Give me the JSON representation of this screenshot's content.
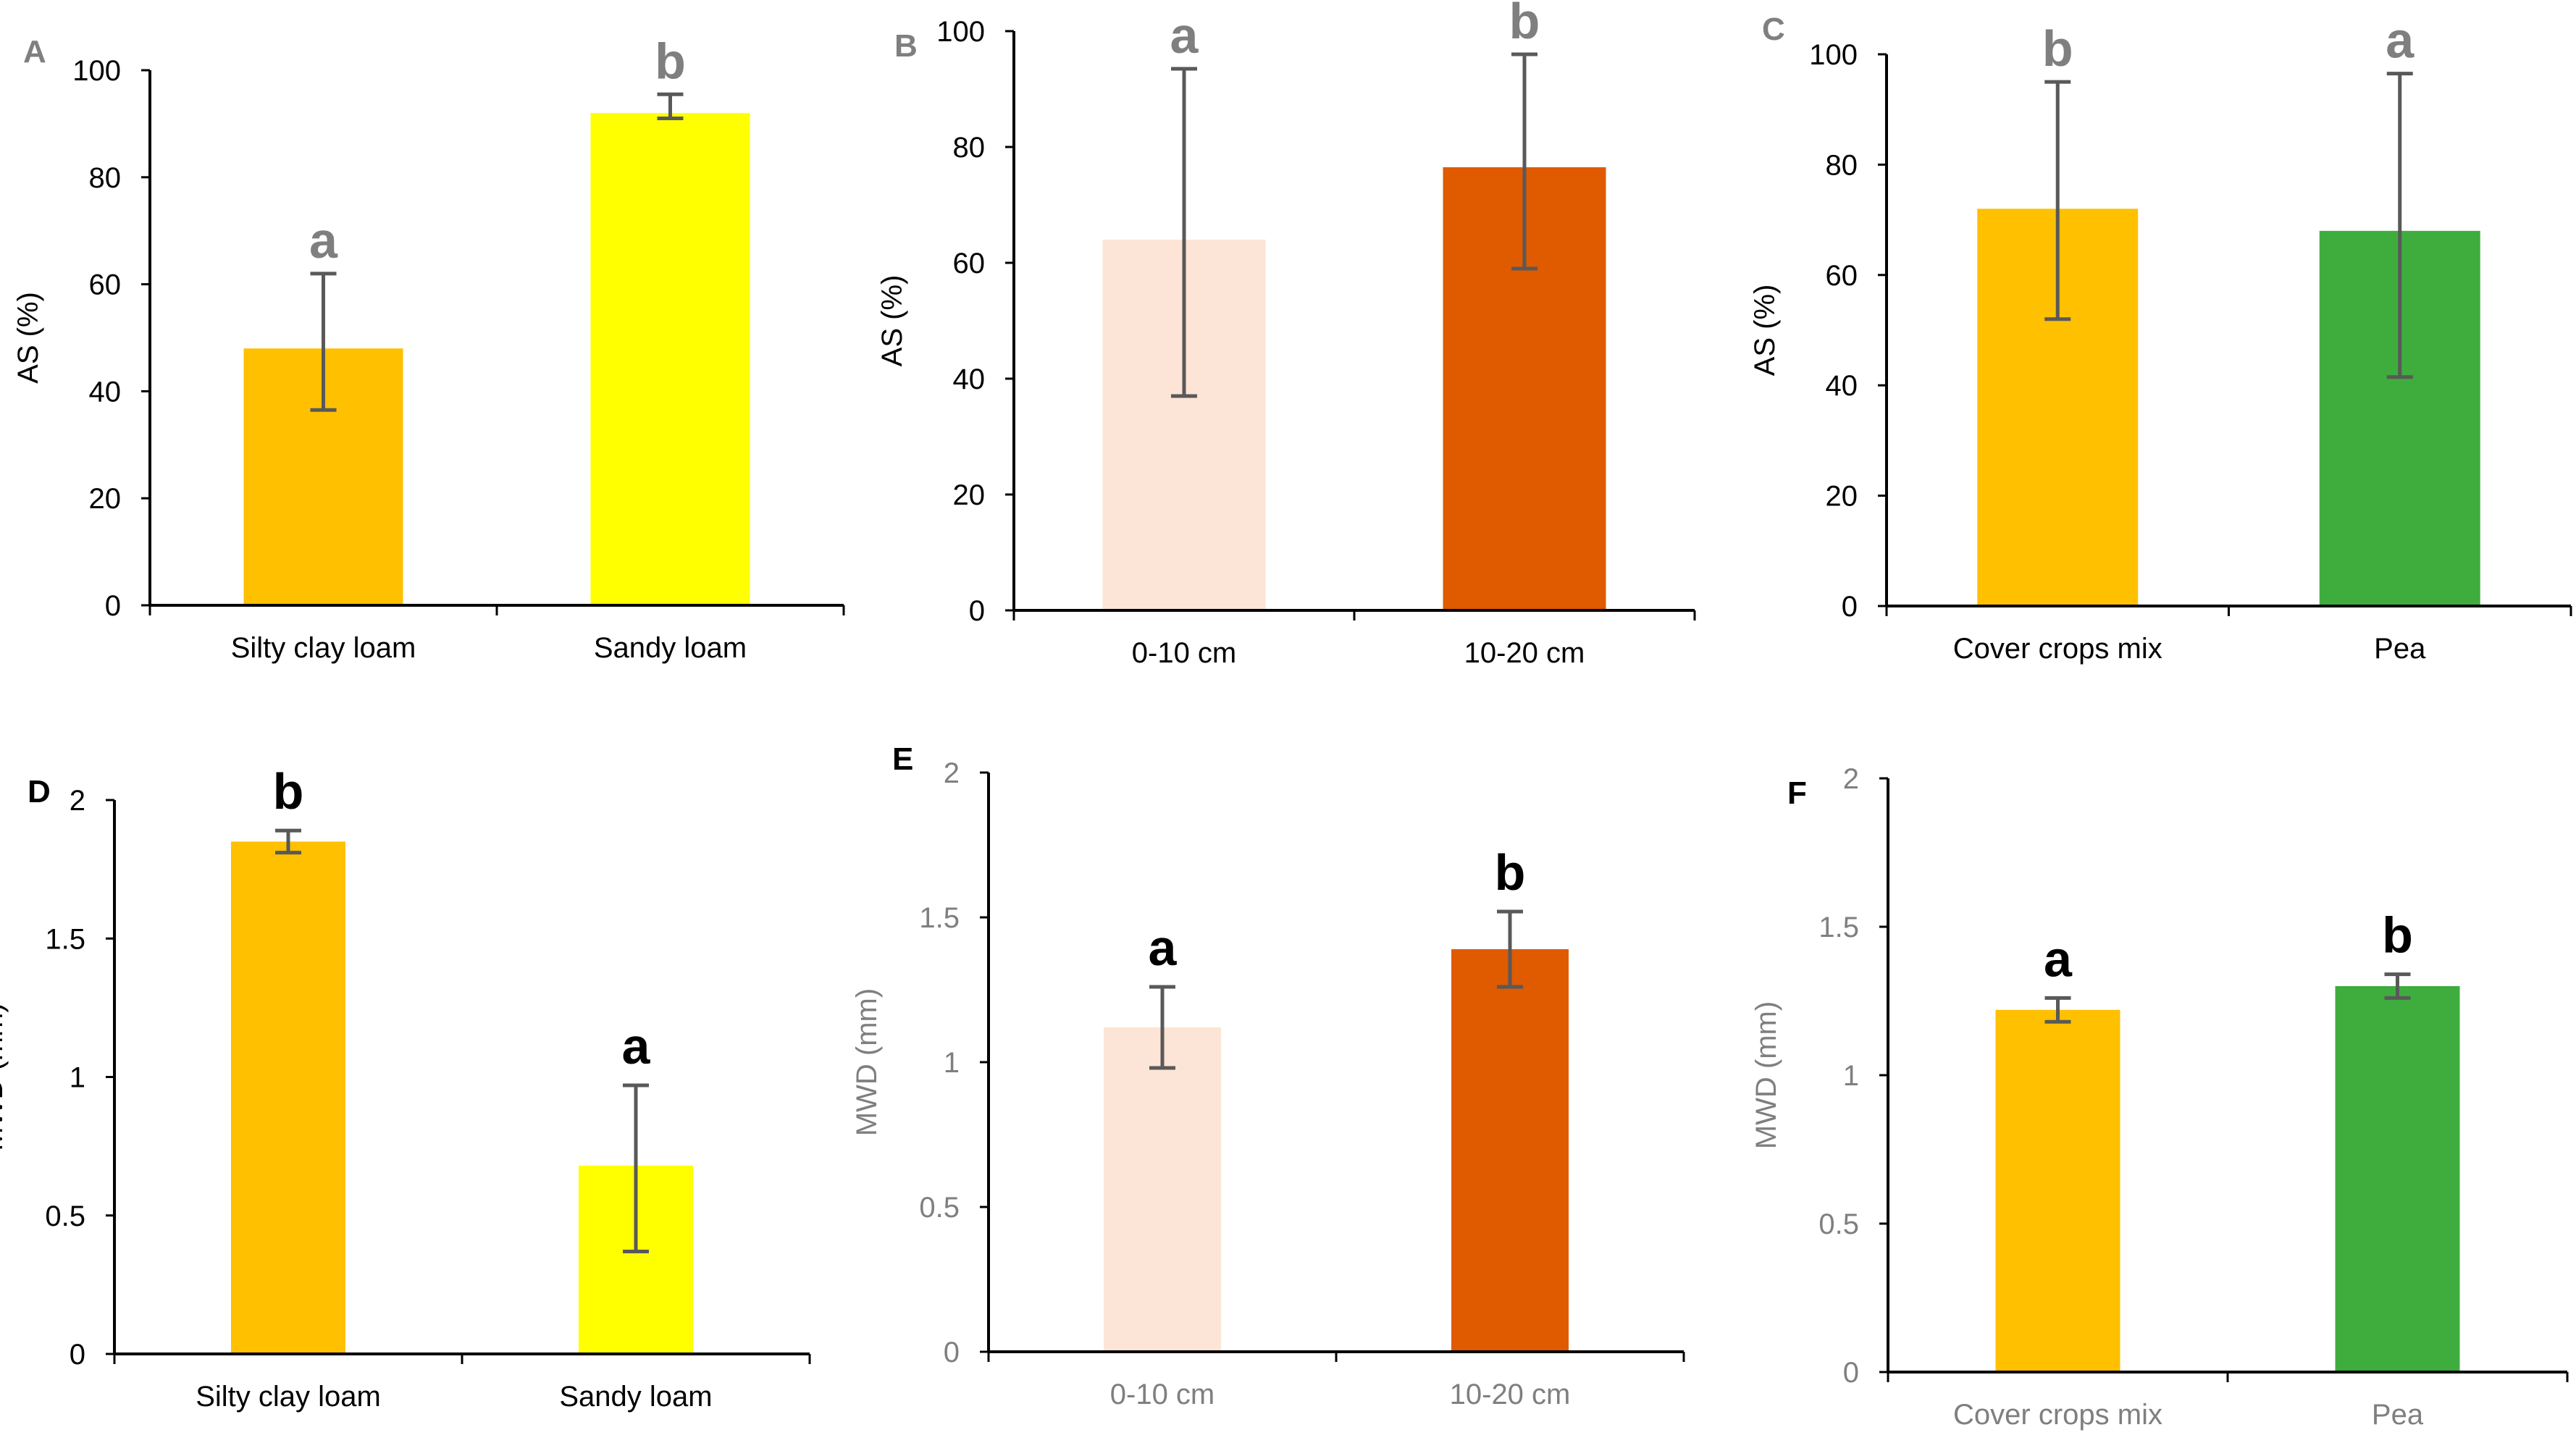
{
  "chart_data": [
    {
      "type": "bar",
      "panel_label": "A",
      "panel_label_color": "#7f7f7f",
      "axis_text_color": "#000000",
      "sig_color": "#7f7f7f",
      "ylabel": "AS (%)",
      "xlabel": "",
      "ylim": [
        0,
        100
      ],
      "yticks": [
        "0",
        "20",
        "40",
        "60",
        "80",
        "100"
      ],
      "grid": false,
      "categories": [
        "Silty clay loam",
        "Sandy loam"
      ],
      "values": [
        48,
        92
      ],
      "error_low": [
        36.5,
        91
      ],
      "error_high": [
        62,
        95.5
      ],
      "colors": [
        "#FFC000",
        "#FFFF00"
      ],
      "significance": [
        "a",
        "b"
      ]
    },
    {
      "type": "bar",
      "panel_label": "B",
      "panel_label_color": "#7f7f7f",
      "axis_text_color": "#000000",
      "sig_color": "#7f7f7f",
      "ylabel": "AS (%)",
      "xlabel": "",
      "ylim": [
        0,
        100
      ],
      "yticks": [
        "0",
        "20",
        "40",
        "60",
        "80",
        "100"
      ],
      "grid": false,
      "categories": [
        "0-10 cm",
        "10-20 cm"
      ],
      "values": [
        64,
        76.5
      ],
      "error_low": [
        37,
        59
      ],
      "error_high": [
        93.5,
        96
      ],
      "colors": [
        "#FCE4D6",
        "#E05A00"
      ],
      "significance": [
        "a",
        "b"
      ]
    },
    {
      "type": "bar",
      "panel_label": "C",
      "panel_label_color": "#7f7f7f",
      "axis_text_color": "#000000",
      "sig_color": "#7f7f7f",
      "ylabel": "AS (%)",
      "xlabel": "",
      "ylim": [
        0,
        100
      ],
      "yticks": [
        "0",
        "20",
        "40",
        "60",
        "80",
        "100"
      ],
      "grid": false,
      "categories": [
        "Cover crops mix",
        "Pea"
      ],
      "values": [
        72,
        68
      ],
      "error_low": [
        52,
        41.5
      ],
      "error_high": [
        95,
        96.5
      ],
      "colors": [
        "#FFC000",
        "#3EAD3E"
      ],
      "significance": [
        "b",
        "a"
      ]
    },
    {
      "type": "bar",
      "panel_label": "D",
      "panel_label_color": "#000000",
      "axis_text_color": "#000000",
      "sig_color": "#000000",
      "ylabel": "MWD (mm)",
      "xlabel": "",
      "ylim": [
        0,
        2
      ],
      "yticks": [
        "0",
        "0.5",
        "1",
        "1.5",
        "2"
      ],
      "grid": false,
      "categories": [
        "Silty clay loam",
        "Sandy loam"
      ],
      "values": [
        1.85,
        0.68
      ],
      "error_low": [
        1.81,
        0.37
      ],
      "error_high": [
        1.89,
        0.97
      ],
      "colors": [
        "#FFC000",
        "#FFFF00"
      ],
      "significance": [
        "b",
        "a"
      ]
    },
    {
      "type": "bar",
      "panel_label": "E",
      "panel_label_color": "#000000",
      "axis_text_color": "#7f7f7f",
      "sig_color": "#000000",
      "ylabel": "MWD (mm)",
      "xlabel": "",
      "ylim": [
        0,
        2
      ],
      "yticks": [
        "0",
        "0.5",
        "1",
        "1.5",
        "2"
      ],
      "grid": false,
      "categories": [
        "0-10 cm",
        "10-20 cm"
      ],
      "values": [
        1.12,
        1.39
      ],
      "error_low": [
        0.98,
        1.26
      ],
      "error_high": [
        1.26,
        1.52
      ],
      "colors": [
        "#FCE4D6",
        "#E05A00"
      ],
      "significance": [
        "a",
        "b"
      ]
    },
    {
      "type": "bar",
      "panel_label": "F",
      "panel_label_color": "#000000",
      "axis_text_color": "#7f7f7f",
      "sig_color": "#000000",
      "ylabel": "MWD (mm)",
      "xlabel": "",
      "ylim": [
        0,
        2
      ],
      "yticks": [
        "0",
        "0.5",
        "1",
        "1.5",
        "2"
      ],
      "grid": false,
      "categories": [
        "Cover crops mix",
        "Pea"
      ],
      "values": [
        1.22,
        1.3
      ],
      "error_low": [
        1.18,
        1.26
      ],
      "error_high": [
        1.26,
        1.34
      ],
      "colors": [
        "#FFC000",
        "#3EAD3E"
      ],
      "significance": [
        "a",
        "b"
      ]
    }
  ]
}
